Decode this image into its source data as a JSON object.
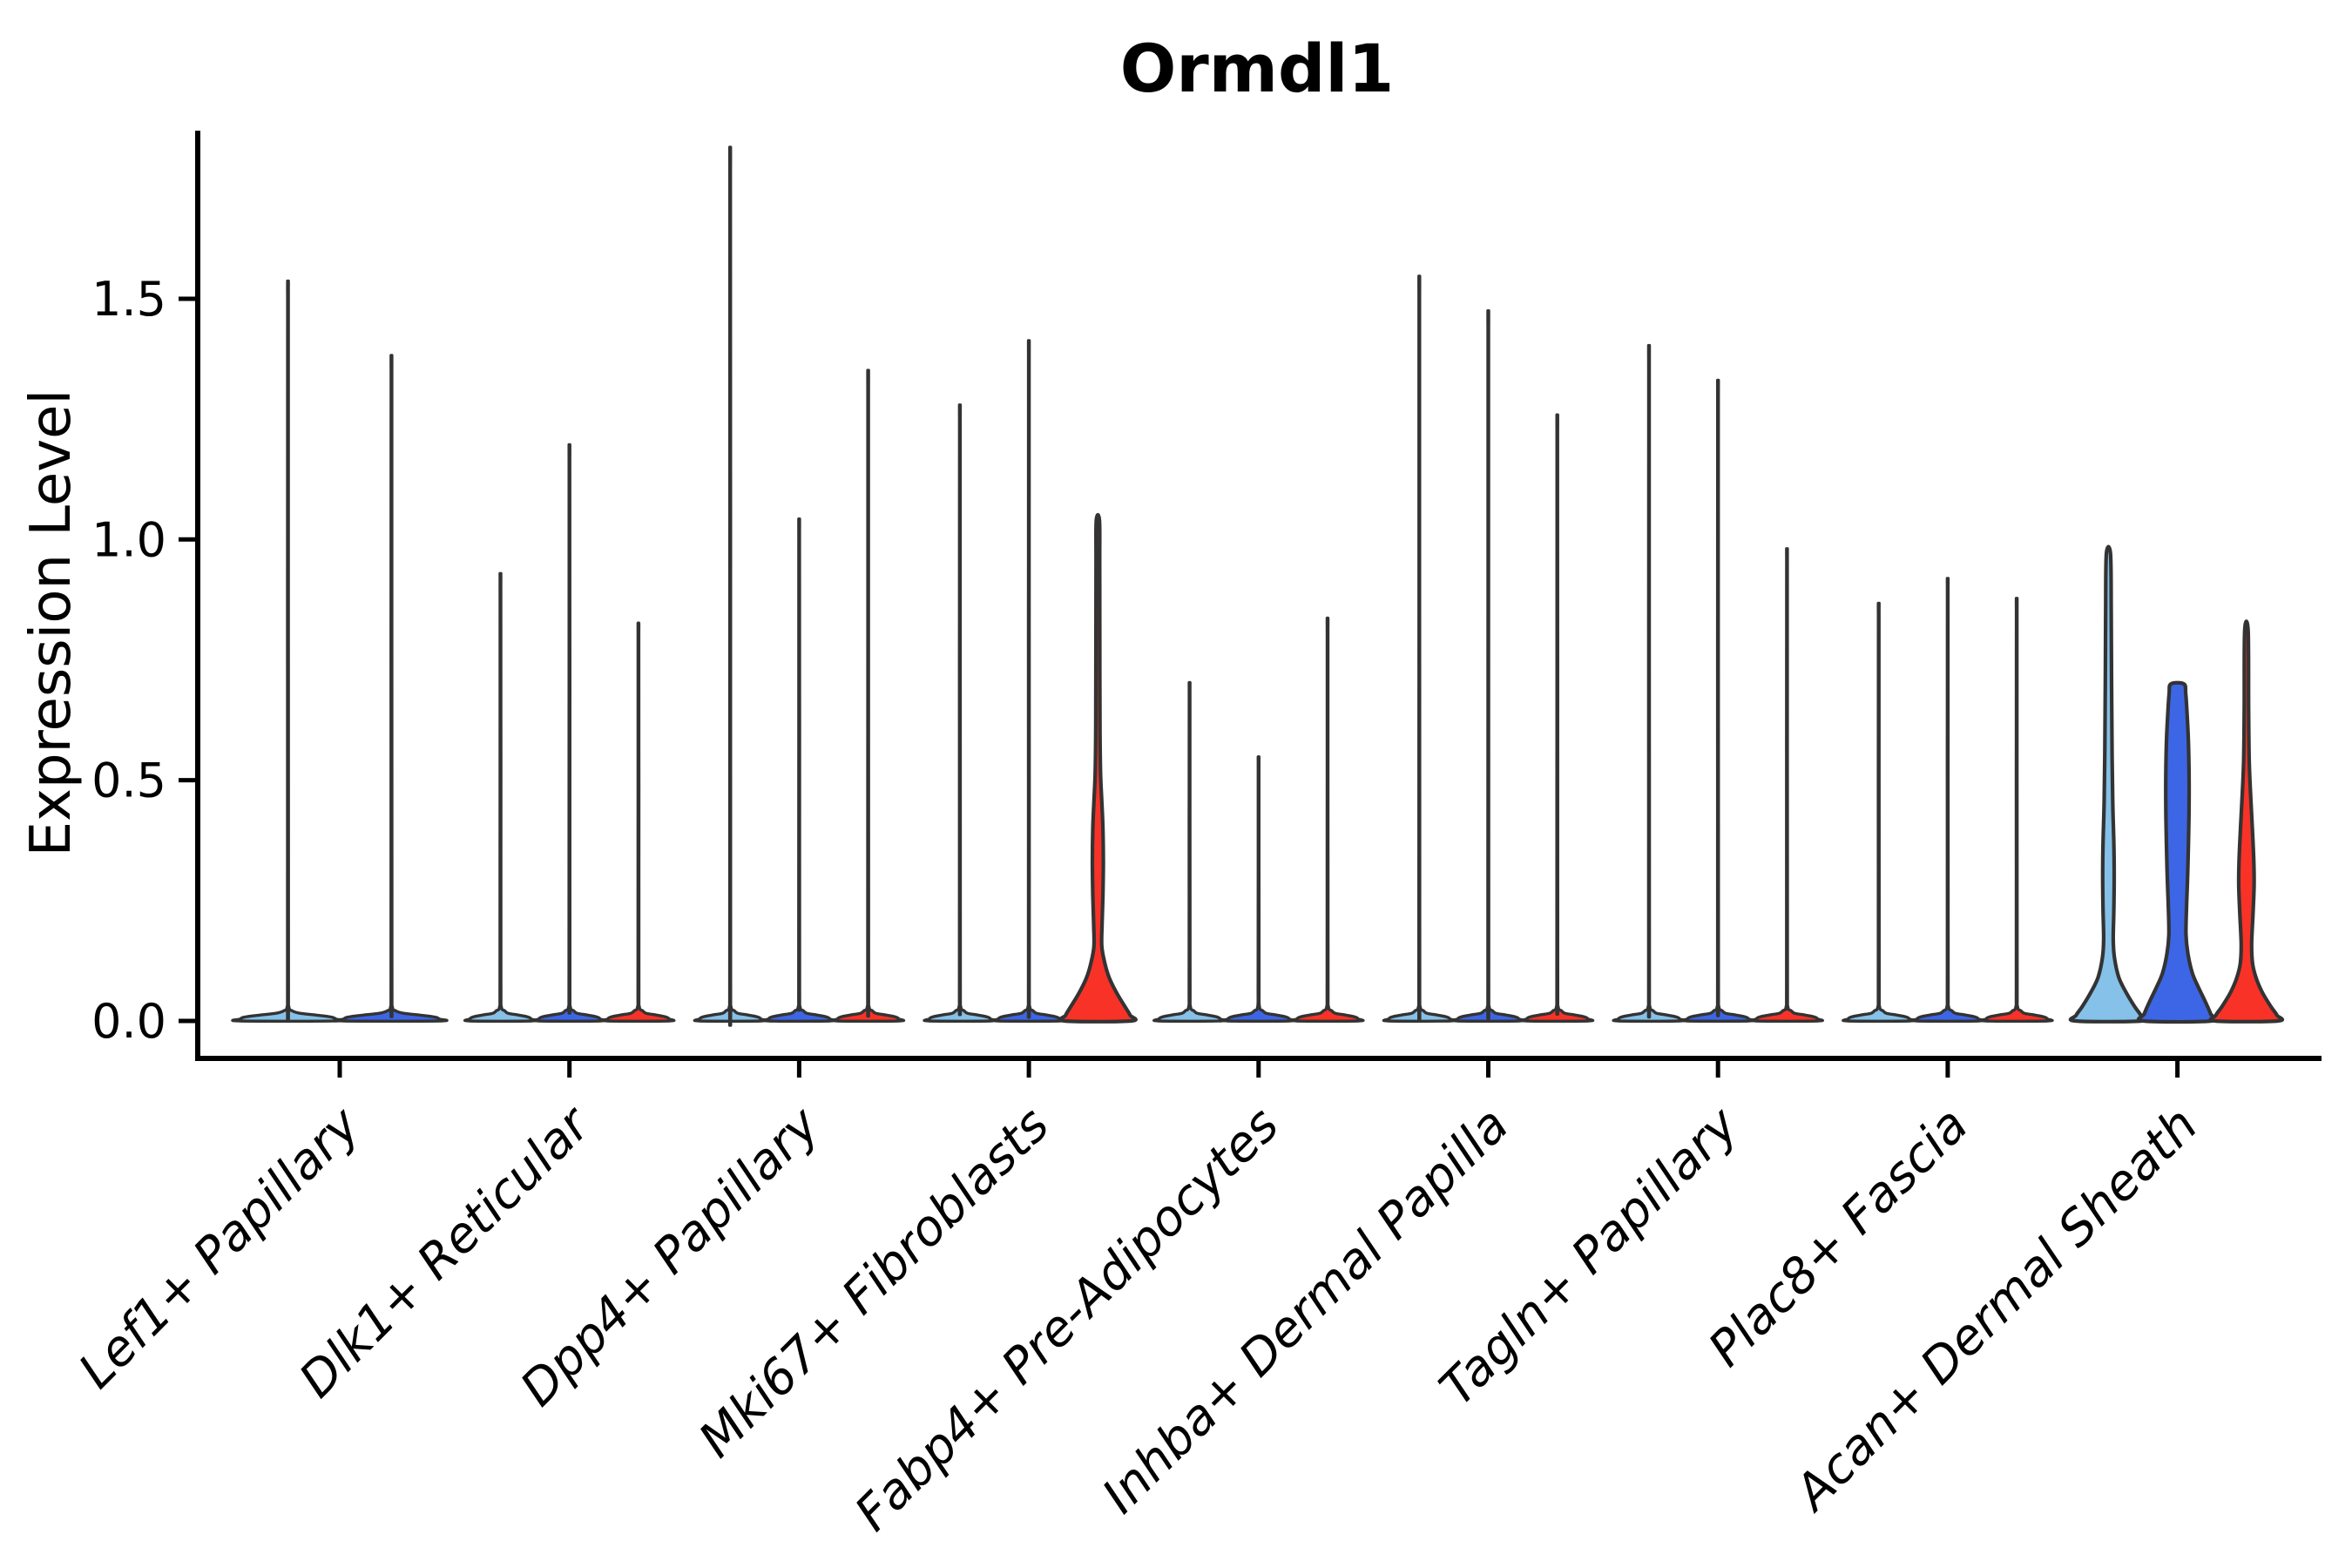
{
  "figure": {
    "title": "Ormdl1",
    "ylabel": "Expression Level"
  },
  "chart_data": {
    "type": "violin",
    "title": "Ormdl1",
    "xlabel": "",
    "ylabel": "Expression Level",
    "ylim": [
      -0.08,
      1.85
    ],
    "yticks": [
      0.0,
      0.5,
      1.0,
      1.5
    ],
    "ytick_labels": [
      "0.0",
      "0.5",
      "1.0",
      "1.5"
    ],
    "grid": false,
    "legend_position": "none",
    "x_label_rotation_deg": 45,
    "x_labels_italic": true,
    "split_groups": [
      "lightblue",
      "blue",
      "red"
    ],
    "palette": {
      "lightblue": "#85C1E8",
      "blue": "#3D66E6",
      "red": "#F93227",
      "violin_outline": "#333333",
      "axis": "#000000",
      "text": "#000000",
      "background": "#FFFFFF"
    },
    "categories": [
      {
        "label": "Lef1+ Papillary",
        "violins": [
          {
            "group": "lightblue",
            "color": "#85C1E8",
            "shape": "spike",
            "peak": 1.5
          },
          {
            "group": "blue",
            "color": "#3D66E6",
            "shape": "spike",
            "peak": 1.35
          }
        ]
      },
      {
        "label": "Dlk1+ Reticular",
        "violins": [
          {
            "group": "lightblue",
            "color": "#85C1E8",
            "shape": "spike",
            "peak": 0.91
          },
          {
            "group": "blue",
            "color": "#3D66E6",
            "shape": "spike",
            "peak": 1.17
          },
          {
            "group": "red",
            "color": "#F93227",
            "shape": "spike",
            "peak": 0.81
          }
        ]
      },
      {
        "label": "Dpp4+ Papillary",
        "violins": [
          {
            "group": "lightblue",
            "color": "#85C1E8",
            "shape": "spike",
            "peak": 1.77
          },
          {
            "group": "blue",
            "color": "#3D66E6",
            "shape": "spike",
            "peak": 1.02
          },
          {
            "group": "red",
            "color": "#F93227",
            "shape": "spike",
            "peak": 1.32
          }
        ]
      },
      {
        "label": "Mki67+ Fibroblasts",
        "violins": [
          {
            "group": "lightblue",
            "color": "#85C1E8",
            "shape": "spike",
            "peak": 1.25
          },
          {
            "group": "blue",
            "color": "#3D66E6",
            "shape": "spike",
            "peak": 1.38
          },
          {
            "group": "red",
            "color": "#F93227",
            "shape": "body",
            "peak": 1.04,
            "profile": [
              [
                0,
                38
              ],
              [
                0.012,
                37
              ],
              [
                0.03,
                31
              ],
              [
                0.06,
                21
              ],
              [
                0.09,
                13
              ],
              [
                0.12,
                8
              ],
              [
                0.155,
                4.5
              ],
              [
                0.2,
                4.8
              ],
              [
                0.26,
                5.8
              ],
              [
                0.33,
                6.3
              ],
              [
                0.4,
                5.8
              ],
              [
                0.46,
                4.4
              ],
              [
                0.52,
                3.0
              ],
              [
                0.62,
                2.4
              ],
              [
                0.8,
                2.2
              ],
              [
                0.95,
                2.1
              ],
              [
                1.04,
                1.8
              ]
            ]
          }
        ]
      },
      {
        "label": "Fabp4+ Pre-Adipocytes",
        "violins": [
          {
            "group": "lightblue",
            "color": "#85C1E8",
            "shape": "spike",
            "peak": 0.69
          },
          {
            "group": "blue",
            "color": "#3D66E6",
            "shape": "spike",
            "peak": 0.54
          },
          {
            "group": "red",
            "color": "#F93227",
            "shape": "spike",
            "peak": 0.82
          }
        ]
      },
      {
        "label": "Inhba+ Dermal Papilla",
        "violins": [
          {
            "group": "lightblue",
            "color": "#85C1E8",
            "shape": "spike",
            "peak": 1.51
          },
          {
            "group": "blue",
            "color": "#3D66E6",
            "shape": "spike",
            "peak": 1.44
          },
          {
            "group": "red",
            "color": "#F93227",
            "shape": "spike",
            "peak": 1.23
          }
        ]
      },
      {
        "label": "Tagln+ Papillary",
        "violins": [
          {
            "group": "lightblue",
            "color": "#85C1E8",
            "shape": "spike",
            "peak": 1.37
          },
          {
            "group": "blue",
            "color": "#3D66E6",
            "shape": "spike",
            "peak": 1.3
          },
          {
            "group": "red",
            "color": "#F93227",
            "shape": "spike",
            "peak": 0.96
          }
        ]
      },
      {
        "label": "Plac8+ Fascia",
        "violins": [
          {
            "group": "lightblue",
            "color": "#85C1E8",
            "shape": "spike",
            "peak": 0.85
          },
          {
            "group": "blue",
            "color": "#3D66E6",
            "shape": "spike",
            "peak": 0.9
          },
          {
            "group": "red",
            "color": "#F93227",
            "shape": "spike",
            "peak": 0.86
          }
        ]
      },
      {
        "label": "Acan+ Dermal Sheath",
        "violins": [
          {
            "group": "lightblue",
            "color": "#85C1E8",
            "shape": "body",
            "peak": 0.97,
            "profile": [
              [
                0,
                38
              ],
              [
                0.012,
                37
              ],
              [
                0.03,
                30
              ],
              [
                0.06,
                20
              ],
              [
                0.09,
                12
              ],
              [
                0.13,
                7
              ],
              [
                0.17,
                5.5
              ],
              [
                0.23,
                6.2
              ],
              [
                0.3,
                6.6
              ],
              [
                0.37,
                6.2
              ],
              [
                0.45,
                5.0
              ],
              [
                0.55,
                4.2
              ],
              [
                0.7,
                3.6
              ],
              [
                0.85,
                3.2
              ],
              [
                0.97,
                2.4
              ]
            ]
          },
          {
            "group": "blue",
            "color": "#3D66E6",
            "shape": "body",
            "peak": 0.7,
            "profile": [
              [
                0,
                39
              ],
              [
                0.015,
                38
              ],
              [
                0.04,
                32
              ],
              [
                0.07,
                24
              ],
              [
                0.1,
                17
              ],
              [
                0.14,
                12
              ],
              [
                0.18,
                9.8
              ],
              [
                0.24,
                10.5
              ],
              [
                0.32,
                12
              ],
              [
                0.42,
                13.2
              ],
              [
                0.5,
                13.4
              ],
              [
                0.58,
                12.6
              ],
              [
                0.64,
                11
              ],
              [
                0.68,
                9.5
              ],
              [
                0.7,
                7.5
              ]
            ]
          },
          {
            "group": "red",
            "color": "#F93227",
            "shape": "body",
            "peak": 0.81,
            "profile": [
              [
                0,
                36
              ],
              [
                0.012,
                35
              ],
              [
                0.03,
                28
              ],
              [
                0.06,
                18
              ],
              [
                0.09,
                11
              ],
              [
                0.12,
                7
              ],
              [
                0.16,
                6
              ],
              [
                0.22,
                7.5
              ],
              [
                0.28,
                8.8
              ],
              [
                0.33,
                8.5
              ],
              [
                0.4,
                6.8
              ],
              [
                0.47,
                4.8
              ],
              [
                0.54,
                3.2
              ],
              [
                0.65,
                2.5
              ],
              [
                0.81,
                2.0
              ]
            ]
          }
        ]
      }
    ]
  }
}
